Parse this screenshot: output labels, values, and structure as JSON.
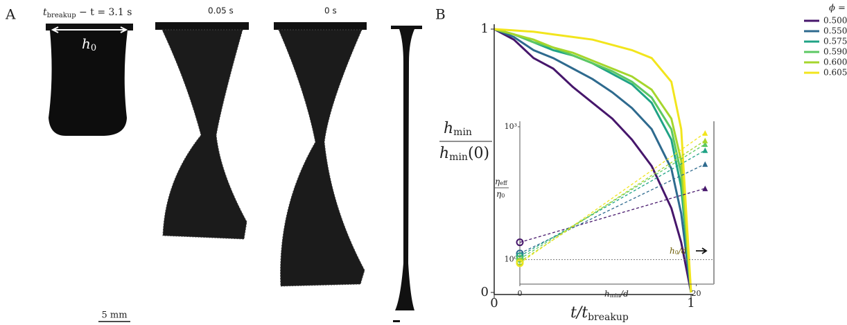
{
  "panel_a": {
    "label": "A",
    "frames": [
      {
        "parts": [
          "t",
          "breakup",
          " − t = 3.1 s"
        ]
      },
      {
        "parts": [
          "0.05 s"
        ]
      },
      {
        "parts": [
          "0 s"
        ]
      }
    ],
    "width_label": [
      "h",
      "0"
    ],
    "scale_bar": "5 mm"
  },
  "chart_data": [
    {
      "type": "line",
      "panel_label": "B",
      "x": [
        0,
        0.1,
        0.2,
        0.3,
        0.4,
        0.5,
        0.6,
        0.7,
        0.8,
        0.9,
        0.95,
        1
      ],
      "xlim": [
        0,
        1
      ],
      "ylim": [
        0,
        1
      ],
      "xticks": [
        0,
        1
      ],
      "yticks": [
        0,
        1
      ],
      "xlabel": [
        "t/t",
        "breakup"
      ],
      "ylabel": {
        "numerator": [
          "h",
          "min"
        ],
        "denominator": [
          "h",
          "min",
          "(0)"
        ]
      },
      "legend_title": "ϕ =",
      "legend_position": "upper right",
      "series": [
        {
          "name": "0.500",
          "color": "#46166b",
          "values": [
            1,
            0.96,
            0.89,
            0.85,
            0.78,
            0.72,
            0.66,
            0.58,
            0.48,
            0.32,
            0.19,
            0
          ]
        },
        {
          "name": "0.550",
          "color": "#2e6a8e",
          "values": [
            1,
            0.97,
            0.92,
            0.89,
            0.85,
            0.81,
            0.76,
            0.7,
            0.62,
            0.47,
            0.3,
            0
          ]
        },
        {
          "name": "0.575",
          "color": "#20a386",
          "values": [
            1,
            0.98,
            0.95,
            0.92,
            0.9,
            0.87,
            0.83,
            0.79,
            0.72,
            0.58,
            0.4,
            0
          ]
        },
        {
          "name": "0.590",
          "color": "#5cc863",
          "values": [
            1,
            0.98,
            0.95,
            0.93,
            0.9,
            0.87,
            0.84,
            0.8,
            0.74,
            0.62,
            0.45,
            0
          ]
        },
        {
          "name": "0.600",
          "color": "#a5d62c",
          "values": [
            1,
            0.98,
            0.96,
            0.93,
            0.91,
            0.88,
            0.85,
            0.82,
            0.77,
            0.66,
            0.5,
            0
          ]
        },
        {
          "name": "0.605",
          "color": "#f2e51d",
          "values": [
            1,
            0.995,
            0.99,
            0.98,
            0.97,
            0.96,
            0.94,
            0.92,
            0.89,
            0.8,
            0.62,
            0
          ]
        }
      ]
    },
    {
      "type": "fit",
      "log_y": true,
      "x": [
        0,
        21
      ],
      "xlim": [
        0,
        22
      ],
      "ylim": [
        0.28,
        1330
      ],
      "xticks": [
        0,
        20
      ],
      "yticks": [
        {
          "value": 1,
          "label": "10⁰"
        },
        {
          "value": 1000,
          "label": "10³"
        }
      ],
      "reference_line": 1,
      "reference_label": [
        "h",
        "0",
        "/d"
      ],
      "xlabel": [
        "h",
        "min",
        "/d"
      ],
      "ylabel": {
        "numerator": [
          "η",
          "eff"
        ],
        "denominator": [
          "η",
          "0"
        ]
      },
      "series": [
        {
          "color": "#46166b",
          "values": [
            2.46,
            40.5
          ]
        },
        {
          "color": "#2e6a8e",
          "values": [
            1.38,
            144
          ]
        },
        {
          "color": "#20a386",
          "values": [
            1.2,
            295
          ]
        },
        {
          "color": "#5cc863",
          "values": [
            1.04,
            405
          ]
        },
        {
          "color": "#a5d62c",
          "values": [
            0.9,
            490
          ]
        },
        {
          "color": "#f2e51d",
          "values": [
            0.83,
            725
          ]
        }
      ]
    }
  ]
}
